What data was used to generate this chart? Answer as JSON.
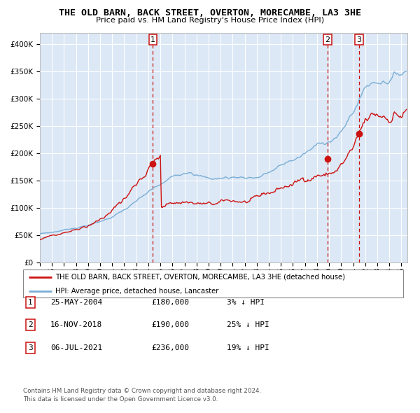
{
  "title": "THE OLD BARN, BACK STREET, OVERTON, MORECAMBE, LA3 3HE",
  "subtitle": "Price paid vs. HM Land Registry's House Price Index (HPI)",
  "legend_red": "THE OLD BARN, BACK STREET, OVERTON, MORECAMBE, LA3 3HE (detached house)",
  "legend_blue": "HPI: Average price, detached house, Lancaster",
  "footer1": "Contains HM Land Registry data © Crown copyright and database right 2024.",
  "footer2": "This data is licensed under the Open Government Licence v3.0.",
  "sales": [
    {
      "label": "1",
      "date": "25-MAY-2004",
      "price": 180000,
      "pct": "3%",
      "x_year": 2004.38
    },
    {
      "label": "2",
      "date": "16-NOV-2018",
      "price": 190000,
      "pct": "25%",
      "x_year": 2018.87
    },
    {
      "label": "3",
      "date": "06-JUL-2021",
      "price": 236000,
      "pct": "19%",
      "x_year": 2021.5
    }
  ],
  "ylim": [
    0,
    420000
  ],
  "xlim": [
    1995.0,
    2025.5
  ],
  "plot_bg": "#dce8f5",
  "red_color": "#cc1111",
  "blue_color": "#7aaed6",
  "grid_color": "#ffffff",
  "vline_color": "#cc1111",
  "sale_dot_color": "#cc1111"
}
